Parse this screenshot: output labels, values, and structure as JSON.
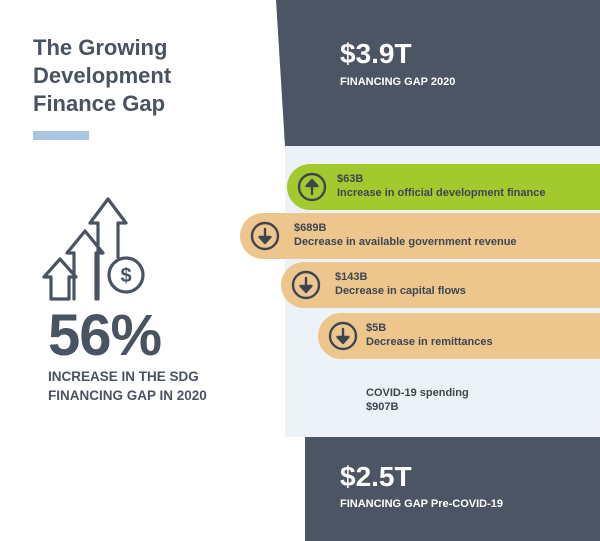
{
  "header": {
    "title_lines": [
      "The Growing",
      "Development",
      "Finance Gap"
    ]
  },
  "stat": {
    "percent": "56%",
    "caption_lines": [
      "INCREASE IN THE SDG",
      "FINANCING GAP IN 2020"
    ]
  },
  "top_gap": {
    "amount": "$3.9T",
    "label": "FINANCING GAP 2020"
  },
  "bottom_gap": {
    "amount": "$2.5T",
    "label": "FINANCING GAP Pre-COVID-19"
  },
  "changes": [
    {
      "amount": "$63B",
      "description": "Increase in official development finance",
      "direction": "up",
      "color": "#a2ca2e"
    },
    {
      "amount": "$689B",
      "description": "Decrease in available government revenue",
      "direction": "down",
      "color": "#edc68e"
    },
    {
      "amount": "$143B",
      "description": "Decrease in capital flows",
      "direction": "down",
      "color": "#edc68e"
    },
    {
      "amount": "$5B",
      "description": "Decrease in remittances",
      "direction": "down",
      "color": "#edc68e"
    }
  ],
  "covid": {
    "label": "COVID-19 spending",
    "value": "$907B"
  },
  "colors": {
    "dark_panel": "#4b5563",
    "accent_blue": "#a8c6e2",
    "increase_green": "#a2ca2e",
    "decrease_tan": "#edc68e",
    "text_dark": "#4a5361"
  },
  "icons": {
    "growth": "rising-arrows-dollar-icon",
    "up": "arrow-up-circle-icon",
    "down": "arrow-down-circle-icon"
  }
}
